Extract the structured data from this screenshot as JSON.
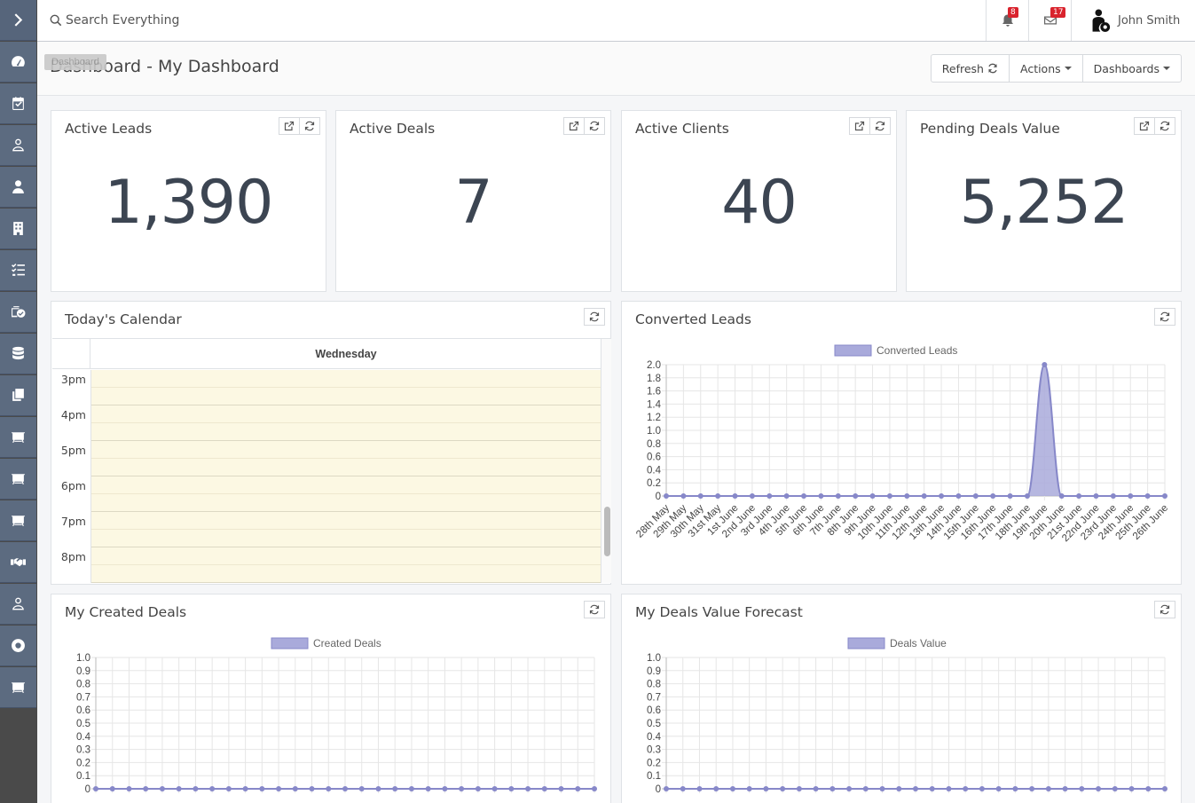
{
  "sidebar": {
    "items": [
      {
        "name": "sidebar-toggle",
        "icon": "chevron-right-icon"
      },
      {
        "name": "sidebar-item-dashboard",
        "icon": "speedometer-icon",
        "tooltip": "Dashboard"
      },
      {
        "name": "sidebar-item-calendar",
        "icon": "calendar-check-icon"
      },
      {
        "name": "sidebar-item-contacts",
        "icon": "user-outline-icon"
      },
      {
        "name": "sidebar-item-users",
        "icon": "user-icon"
      },
      {
        "name": "sidebar-item-companies",
        "icon": "building-icon"
      },
      {
        "name": "sidebar-item-tasks",
        "icon": "list-check-icon"
      },
      {
        "name": "sidebar-item-deals-approved",
        "icon": "wallet-check-icon"
      },
      {
        "name": "sidebar-item-database",
        "icon": "database-icon"
      },
      {
        "name": "sidebar-item-documents",
        "icon": "copy-icon"
      },
      {
        "name": "sidebar-item-meetings-1",
        "icon": "presentation-icon"
      },
      {
        "name": "sidebar-item-meetings-2",
        "icon": "presentation-icon"
      },
      {
        "name": "sidebar-item-meetings-3",
        "icon": "presentation-icon"
      },
      {
        "name": "sidebar-item-deals",
        "icon": "handshake-icon"
      },
      {
        "name": "sidebar-item-profile",
        "icon": "user-outline-icon"
      },
      {
        "name": "sidebar-item-support",
        "icon": "life-ring-icon"
      },
      {
        "name": "sidebar-item-training",
        "icon": "presentation-icon"
      }
    ]
  },
  "topbar": {
    "search_placeholder": "Search Everything",
    "notifications_count": "8",
    "messages_count": "17",
    "user_name": "John Smith"
  },
  "header": {
    "title": "Dashboard - My Dashboard",
    "buttons": {
      "refresh": "Refresh",
      "actions": "Actions",
      "dashboards": "Dashboards"
    }
  },
  "stats": [
    {
      "title": "Active Leads",
      "value": "1,390"
    },
    {
      "title": "Active Deals",
      "value": "7"
    },
    {
      "title": "Active Clients",
      "value": "40"
    },
    {
      "title": "Pending Deals Value",
      "value": "5,252"
    }
  ],
  "calendar": {
    "title": "Today's Calendar",
    "day": "Wednesday",
    "times": [
      "3pm",
      "4pm",
      "5pm",
      "6pm",
      "7pm",
      "8pm"
    ]
  },
  "colors": {
    "sidebar": "#5c6b80",
    "series_fill": "#a9aadb",
    "series_line": "#8788c9",
    "badge": "#d9232d",
    "calendar_slot": "#fcf8e3"
  },
  "chart_data": [
    {
      "type": "area",
      "title": "Converted Leads",
      "series": [
        {
          "name": "Converted Leads",
          "values": [
            0,
            0,
            0,
            0,
            0,
            0,
            0,
            0,
            0,
            0,
            0,
            0,
            0,
            0,
            0,
            0,
            0,
            0,
            0,
            0,
            0,
            0,
            2,
            0,
            0,
            0,
            0,
            0,
            0,
            0
          ]
        }
      ],
      "x": [
        "28th May",
        "29th May",
        "30th May",
        "31st May",
        "1st June",
        "2nd June",
        "3rd June",
        "4th June",
        "5th June",
        "6th June",
        "7th June",
        "8th June",
        "9th June",
        "10th June",
        "11th June",
        "12th June",
        "13th June",
        "14th June",
        "15th June",
        "16th June",
        "17th June",
        "18th June",
        "19th June",
        "20th June",
        "21st June",
        "22nd June",
        "23rd June",
        "24th June",
        "25th June",
        "26th June"
      ],
      "ylim": [
        0,
        2.0
      ],
      "yticks": [
        "0",
        "0.2",
        "0.4",
        "0.6",
        "0.8",
        "1.0",
        "1.2",
        "1.4",
        "1.6",
        "1.8",
        "2.0"
      ],
      "grid": true,
      "legend": "top"
    },
    {
      "type": "area",
      "title": "My Created Deals",
      "series": [
        {
          "name": "Created Deals",
          "values": [
            0,
            0,
            0,
            0,
            0,
            0,
            0,
            0,
            0,
            0,
            0,
            0,
            0,
            0,
            0,
            0,
            0,
            0,
            0,
            0,
            0,
            0,
            0,
            0,
            0,
            0,
            0,
            0,
            0,
            0,
            0
          ]
        }
      ],
      "ylim": [
        0,
        1.0
      ],
      "yticks": [
        "0",
        "0.1",
        "0.2",
        "0.3",
        "0.4",
        "0.5",
        "0.6",
        "0.7",
        "0.8",
        "0.9",
        "1.0"
      ],
      "grid": true,
      "legend": "top"
    },
    {
      "type": "area",
      "title": "My Deals Value Forecast",
      "series": [
        {
          "name": "Deals Value",
          "values": [
            0,
            0,
            0,
            0,
            0,
            0,
            0,
            0,
            0,
            0,
            0,
            0,
            0,
            0,
            0,
            0,
            0,
            0,
            0,
            0,
            0,
            0,
            0,
            0,
            0,
            0,
            0,
            0,
            0,
            0,
            0
          ]
        }
      ],
      "ylim": [
        0,
        1.0
      ],
      "yticks": [
        "0",
        "0.1",
        "0.2",
        "0.3",
        "0.4",
        "0.5",
        "0.6",
        "0.7",
        "0.8",
        "0.9",
        "1.0"
      ],
      "grid": true,
      "legend": "top"
    }
  ]
}
